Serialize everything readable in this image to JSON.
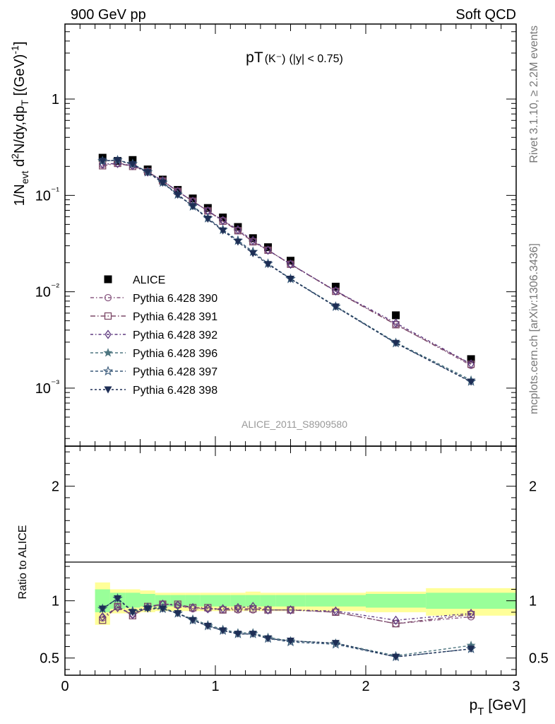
{
  "header": {
    "left": "900 GeV pp",
    "right": "Soft QCD",
    "side_top": "Rivet 3.1.10, ≥ 2.2M events",
    "side_bottom": "mcplots.cern.ch [arXiv:1306.3436]",
    "watermark": "ALICE_2011_S8909580"
  },
  "colors": {
    "data": "#000000",
    "p390": "#8a5a82",
    "p391": "#7d4a68",
    "p392": "#5e3a80",
    "p396": "#4e7680",
    "p397": "#3a5a7a",
    "p398": "#1e2e55",
    "band_inner": "#99ff99",
    "band_outer": "#ffff99"
  },
  "chart_data": [
    {
      "type": "scatter",
      "title": "pT(K⁻) (|y| < 0.75)",
      "title_main": "pT",
      "title_particle": "(K⁻)",
      "title_cut": "(|y| < 0.75)",
      "ylabel": "1/N_evt d²N/dy,dp_T [(GeV)⁻¹]",
      "yscale": "log",
      "xlim": [
        0,
        3
      ],
      "ylim": [
        0.00025,
        6
      ],
      "ytick_labels": [
        "10⁻³",
        "10⁻²",
        "10⁻¹",
        "1"
      ],
      "legend_position": "center-left",
      "x": [
        0.25,
        0.35,
        0.45,
        0.55,
        0.65,
        0.75,
        0.85,
        0.95,
        1.05,
        1.15,
        1.25,
        1.35,
        1.5,
        1.8,
        2.2,
        2.7
      ],
      "series": [
        {
          "name": "ALICE",
          "marker": "square-filled",
          "values": [
            0.246,
            0.228,
            0.233,
            0.186,
            0.146,
            0.114,
            0.093,
            0.074,
            0.059,
            0.047,
            0.036,
            0.029,
            0.021,
            0.0113,
            0.0057,
            0.002
          ]
        },
        {
          "name": "Pythia 6.428 390",
          "marker": "circle",
          "values": [
            0.208,
            0.216,
            0.204,
            0.175,
            0.141,
            0.11,
            0.087,
            0.069,
            0.055,
            0.043,
            0.033,
            0.027,
            0.0194,
            0.0102,
            0.0046,
            0.00172
          ]
        },
        {
          "name": "Pythia 6.428 391",
          "marker": "square",
          "values": [
            0.203,
            0.215,
            0.2,
            0.176,
            0.141,
            0.11,
            0.087,
            0.069,
            0.054,
            0.043,
            0.033,
            0.027,
            0.0193,
            0.0101,
            0.00455,
            0.00177
          ]
        },
        {
          "name": "Pythia 6.428 392",
          "marker": "diamond",
          "values": [
            0.212,
            0.214,
            0.204,
            0.175,
            0.142,
            0.11,
            0.087,
            0.069,
            0.055,
            0.044,
            0.034,
            0.027,
            0.0193,
            0.0102,
            0.00474,
            0.00178
          ]
        },
        {
          "name": "Pythia 6.428 396",
          "marker": "star",
          "values": [
            0.228,
            0.232,
            0.212,
            0.175,
            0.137,
            0.102,
            0.078,
            0.058,
            0.044,
            0.034,
            0.026,
            0.0196,
            0.0137,
            0.0071,
            0.00298,
            0.00121
          ]
        },
        {
          "name": "Pythia 6.428 397",
          "marker": "star-open",
          "values": [
            0.228,
            0.232,
            0.212,
            0.174,
            0.136,
            0.102,
            0.077,
            0.058,
            0.044,
            0.034,
            0.026,
            0.0196,
            0.0136,
            0.007,
            0.00293,
            0.00117
          ]
        },
        {
          "name": "Pythia 6.428 398",
          "marker": "triangle-down",
          "values": [
            0.228,
            0.231,
            0.21,
            0.174,
            0.135,
            0.101,
            0.077,
            0.057,
            0.043,
            0.033,
            0.025,
            0.0193,
            0.0136,
            0.007,
            0.00293,
            0.00116
          ]
        }
      ]
    },
    {
      "type": "line",
      "ylabel": "Ratio to ALICE",
      "xlabel": "p_T [GeV]",
      "xlim": [
        0,
        3
      ],
      "ylim": [
        0.35,
        2.35
      ],
      "xtick_labels": [
        "0",
        "1",
        "2",
        "3"
      ],
      "ytick_labels": [
        "0.5",
        "1",
        "2"
      ],
      "band_bins": [
        0.2,
        0.3,
        0.4,
        0.5,
        0.6,
        0.7,
        0.8,
        0.9,
        1.0,
        1.1,
        1.2,
        1.3,
        1.4,
        1.6,
        2.0,
        2.4,
        3.0
      ],
      "band_inner": [
        [
          0.9,
          1.1
        ],
        [
          0.93,
          1.07
        ],
        [
          0.94,
          1.07
        ],
        [
          0.95,
          1.06
        ],
        [
          0.95,
          1.05
        ],
        [
          0.95,
          1.05
        ],
        [
          0.95,
          1.05
        ],
        [
          0.95,
          1.05
        ],
        [
          0.95,
          1.05
        ],
        [
          0.95,
          1.05
        ],
        [
          0.95,
          1.05
        ],
        [
          0.95,
          1.05
        ],
        [
          0.95,
          1.05
        ],
        [
          0.95,
          1.05
        ],
        [
          0.94,
          1.06
        ],
        [
          0.93,
          1.07
        ]
      ],
      "band_outer": [
        [
          0.79,
          1.16
        ],
        [
          0.89,
          1.1
        ],
        [
          0.89,
          1.1
        ],
        [
          0.9,
          1.09
        ],
        [
          0.91,
          1.07
        ],
        [
          0.91,
          1.07
        ],
        [
          0.91,
          1.07
        ],
        [
          0.91,
          1.07
        ],
        [
          0.91,
          1.07
        ],
        [
          0.91,
          1.07
        ],
        [
          0.91,
          1.08
        ],
        [
          0.91,
          1.07
        ],
        [
          0.91,
          1.07
        ],
        [
          0.91,
          1.07
        ],
        [
          0.9,
          1.08
        ],
        [
          0.87,
          1.11
        ]
      ],
      "x": [
        0.25,
        0.35,
        0.45,
        0.55,
        0.65,
        0.75,
        0.85,
        0.95,
        1.05,
        1.15,
        1.25,
        1.35,
        1.5,
        1.8,
        2.2,
        2.7
      ],
      "series": [
        {
          "name": "Pythia 6.428 390",
          "values": [
            0.85,
            0.95,
            0.88,
            0.94,
            0.97,
            0.96,
            0.93,
            0.93,
            0.92,
            0.92,
            0.92,
            0.92,
            0.92,
            0.9,
            0.8,
            0.86
          ]
        },
        {
          "name": "Pythia 6.428 391",
          "values": [
            0.83,
            0.95,
            0.87,
            0.95,
            0.97,
            0.97,
            0.94,
            0.94,
            0.92,
            0.93,
            0.93,
            0.92,
            0.92,
            0.9,
            0.8,
            0.88
          ]
        },
        {
          "name": "Pythia 6.428 392",
          "values": [
            0.86,
            0.94,
            0.88,
            0.94,
            0.97,
            0.96,
            0.94,
            0.93,
            0.93,
            0.94,
            0.95,
            0.92,
            0.92,
            0.91,
            0.83,
            0.89
          ]
        },
        {
          "name": "Pythia 6.428 396",
          "values": [
            0.93,
            1.02,
            0.91,
            0.94,
            0.94,
            0.89,
            0.84,
            0.79,
            0.75,
            0.72,
            0.72,
            0.68,
            0.65,
            0.63,
            0.52,
            0.61
          ]
        },
        {
          "name": "Pythia 6.428 397",
          "values": [
            0.93,
            1.02,
            0.91,
            0.94,
            0.93,
            0.89,
            0.83,
            0.78,
            0.74,
            0.71,
            0.71,
            0.67,
            0.64,
            0.62,
            0.51,
            0.58
          ]
        },
        {
          "name": "Pythia 6.428 398",
          "values": [
            0.93,
            1.02,
            0.9,
            0.93,
            0.93,
            0.89,
            0.83,
            0.78,
            0.74,
            0.71,
            0.71,
            0.67,
            0.65,
            0.63,
            0.51,
            0.58
          ]
        }
      ]
    }
  ]
}
